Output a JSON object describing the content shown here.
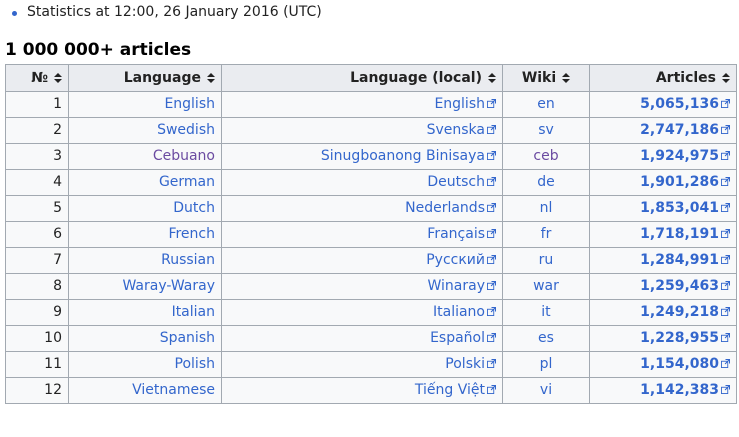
{
  "stats_line": "Statistics at 12:00, 26 January 2016 (UTC)",
  "section_heading": "1 000 000+ articles",
  "colors": {
    "link": "#3366cc",
    "visited": "#6b4ba1",
    "header_bg": "#eaecf0",
    "border": "#a2a9b1"
  },
  "table": {
    "headers": {
      "no": "№",
      "language": "Language",
      "language_local": "Language (local)",
      "wiki": "Wiki",
      "articles": "Articles"
    },
    "rows": [
      {
        "no": "1",
        "language": "English",
        "local": "English",
        "wiki": "en",
        "articles": "5,065,136"
      },
      {
        "no": "2",
        "language": "Swedish",
        "local": "Svenska",
        "wiki": "sv",
        "articles": "2,747,186"
      },
      {
        "no": "3",
        "language": "Cebuano",
        "local": "Sinugboanong Binisaya",
        "wiki": "ceb",
        "articles": "1,924,975",
        "visited": true
      },
      {
        "no": "4",
        "language": "German",
        "local": "Deutsch",
        "wiki": "de",
        "articles": "1,901,286"
      },
      {
        "no": "5",
        "language": "Dutch",
        "local": "Nederlands",
        "wiki": "nl",
        "articles": "1,853,041"
      },
      {
        "no": "6",
        "language": "French",
        "local": "Français",
        "wiki": "fr",
        "articles": "1,718,191"
      },
      {
        "no": "7",
        "language": "Russian",
        "local": "Русский",
        "wiki": "ru",
        "articles": "1,284,991"
      },
      {
        "no": "8",
        "language": "Waray-Waray",
        "local": "Winaray",
        "wiki": "war",
        "articles": "1,259,463"
      },
      {
        "no": "9",
        "language": "Italian",
        "local": "Italiano",
        "wiki": "it",
        "articles": "1,249,218"
      },
      {
        "no": "10",
        "language": "Spanish",
        "local": "Español",
        "wiki": "es",
        "articles": "1,228,955"
      },
      {
        "no": "11",
        "language": "Polish",
        "local": "Polski",
        "wiki": "pl",
        "articles": "1,154,080"
      },
      {
        "no": "12",
        "language": "Vietnamese",
        "local": "Tiếng Việt",
        "wiki": "vi",
        "articles": "1,142,383"
      }
    ]
  },
  "icons": {
    "external_link": "external-link-icon",
    "sort": "sort-icon"
  }
}
